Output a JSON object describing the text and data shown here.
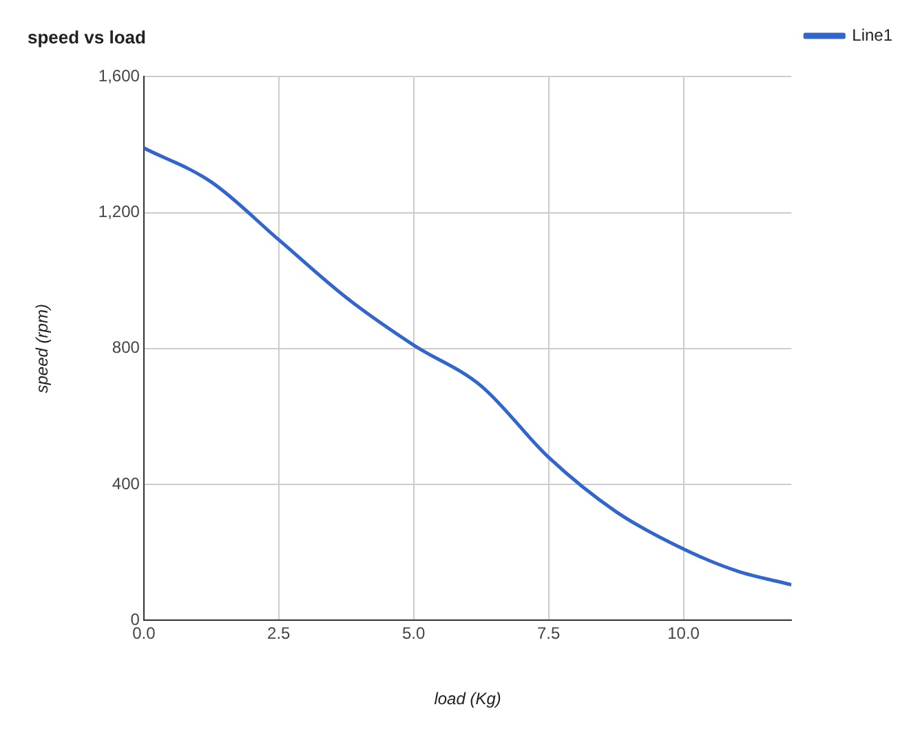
{
  "chart_data": {
    "type": "line",
    "title": "speed vs load",
    "xlabel": "load (Kg)",
    "ylabel": "speed (rpm)",
    "x": [
      0,
      1.25,
      2.5,
      3.75,
      5,
      6.25,
      7.5,
      8.75,
      10,
      11,
      12
    ],
    "series": [
      {
        "name": "Line1",
        "color": "#3366cc",
        "values": [
          1390,
          1290,
          1120,
          950,
          810,
          690,
          480,
          320,
          210,
          145,
          105
        ]
      }
    ],
    "xlim": [
      0,
      12
    ],
    "xticks": [
      {
        "value": 0,
        "label": "0.0"
      },
      {
        "value": 2.5,
        "label": "2.5"
      },
      {
        "value": 5,
        "label": "5.0"
      },
      {
        "value": 7.5,
        "label": "7.5"
      },
      {
        "value": 10,
        "label": "10.0"
      }
    ],
    "ylim": [
      0,
      1600
    ],
    "yticks": [
      0,
      400,
      800,
      {
        "value": 1200,
        "label": "1,200"
      },
      {
        "value": 1600,
        "label": "1,600"
      }
    ],
    "grid": true,
    "legend": "top right",
    "marker": "none",
    "line_style": "solid"
  }
}
